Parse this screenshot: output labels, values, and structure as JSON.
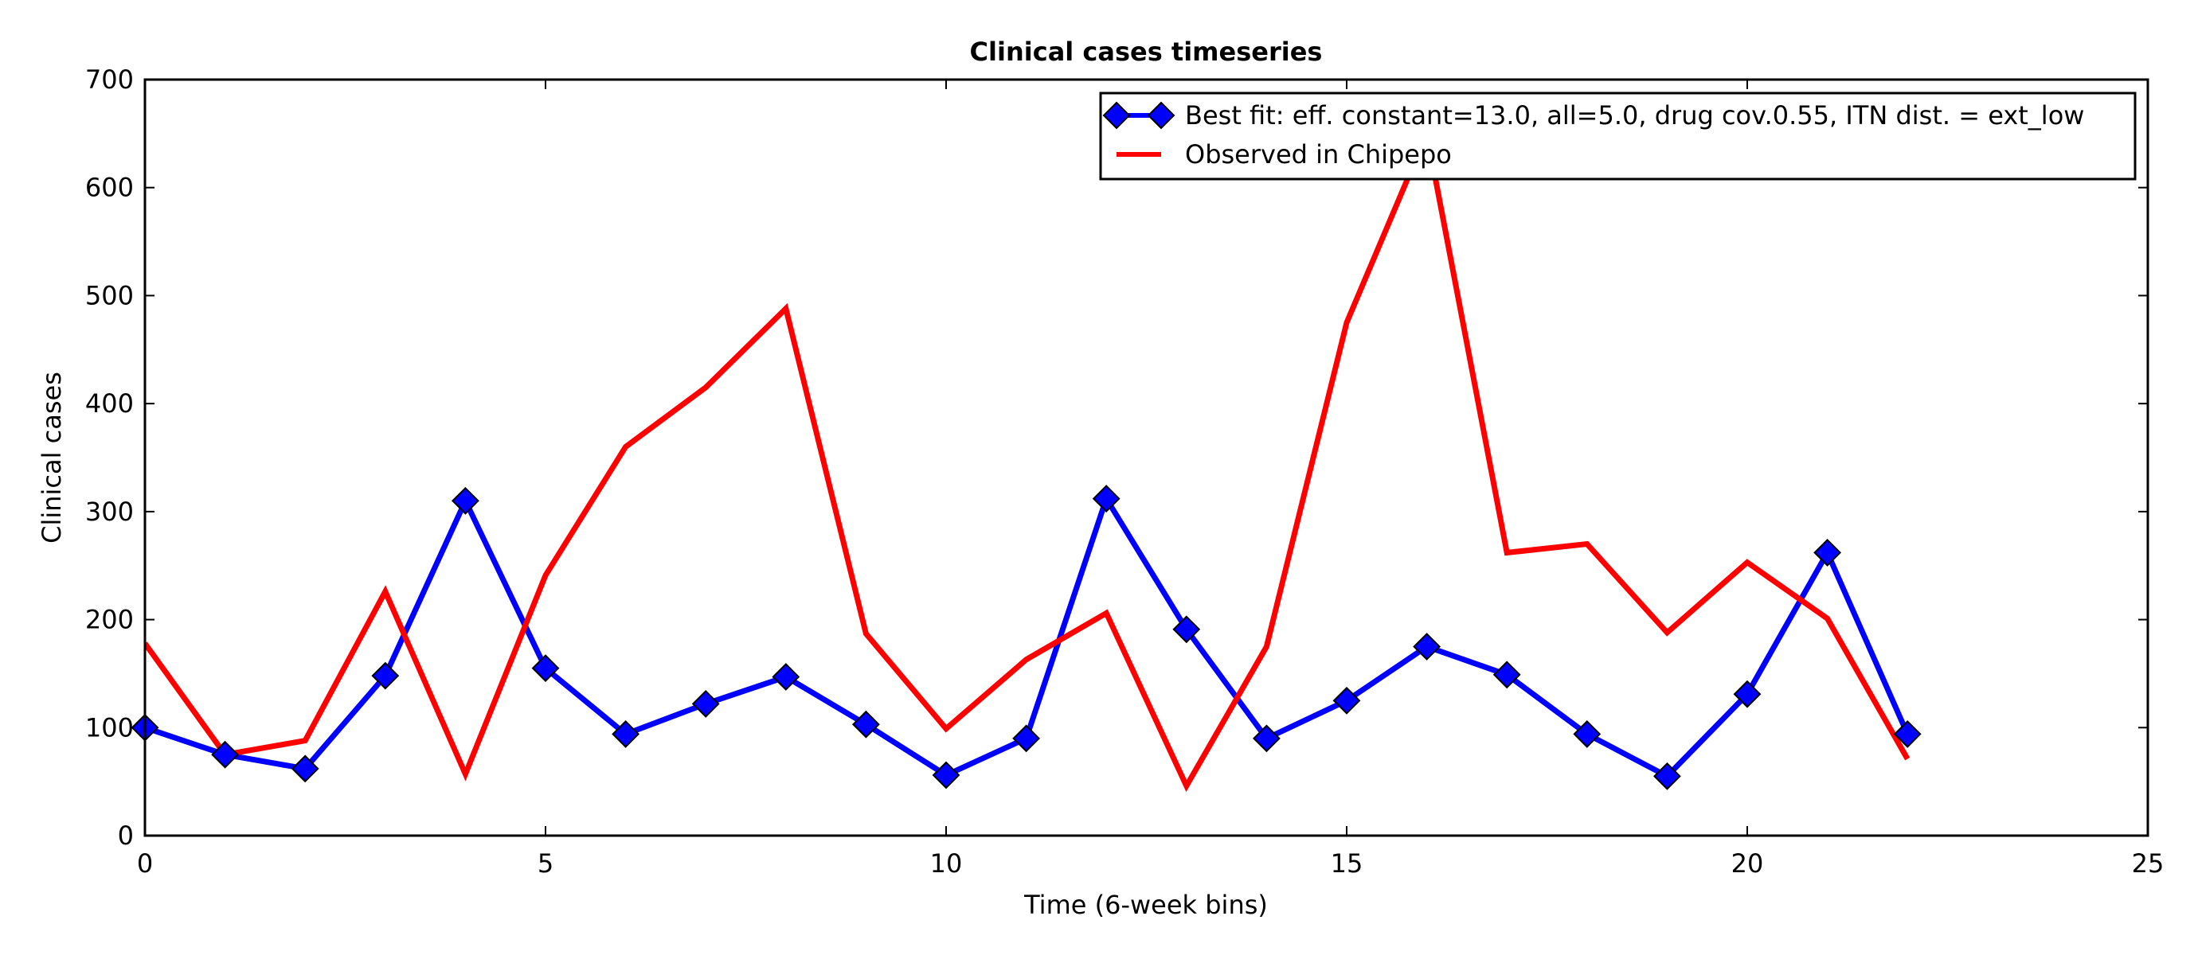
{
  "chart_data": {
    "type": "line",
    "title": "Clinical cases timeseries",
    "xlabel": "Time (6-week bins)",
    "ylabel": "Clinical cases",
    "xlim": [
      0,
      25
    ],
    "ylim": [
      0,
      700
    ],
    "x_ticks": [
      0,
      5,
      10,
      15,
      20,
      25
    ],
    "y_ticks": [
      0,
      100,
      200,
      300,
      400,
      500,
      600,
      700
    ],
    "x_tick_labels": [
      "0",
      "5",
      "10",
      "15",
      "20",
      "25"
    ],
    "y_tick_labels": [
      "0",
      "100",
      "200",
      "300",
      "400",
      "500",
      "600",
      "700"
    ],
    "grid": false,
    "legend_position": "top-right",
    "series": [
      {
        "name": "Best fit: eff. constant=13.0, all=5.0, drug cov.0.55, ITN dist. = ext_low",
        "color": "#0000ff",
        "marker": "diamond",
        "x": [
          0,
          1,
          2,
          3,
          4,
          5,
          6,
          7,
          8,
          9,
          10,
          11,
          12,
          13,
          14,
          15,
          16,
          17,
          18,
          19,
          20,
          21,
          22
        ],
        "values": [
          100,
          75,
          62,
          148,
          310,
          155,
          94,
          122,
          147,
          103,
          56,
          90,
          312,
          191,
          90,
          125,
          175,
          149,
          94,
          55,
          131,
          262,
          94
        ]
      },
      {
        "name": "Observed in Chipepo",
        "color": "#ff0000",
        "marker": "none",
        "x": [
          0,
          1,
          2,
          3,
          4,
          5,
          6,
          7,
          8,
          9,
          10,
          11,
          12,
          13,
          14,
          15,
          16,
          17,
          18,
          19,
          20,
          21,
          22
        ],
        "values": [
          178,
          75,
          88,
          226,
          57,
          241,
          360,
          415,
          488,
          187,
          99,
          163,
          206,
          46,
          175,
          475,
          650,
          262,
          270,
          188,
          253,
          201,
          71
        ]
      }
    ]
  }
}
